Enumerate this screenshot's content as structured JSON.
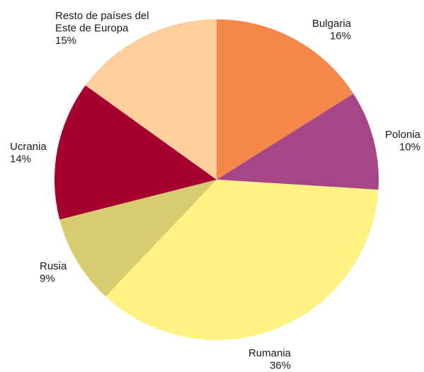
{
  "chart_data": {
    "type": "pie",
    "slices": [
      {
        "name": "Bulgaria",
        "value": 16,
        "pct_label": "16%",
        "color": "#F6874A"
      },
      {
        "name": "Polonia",
        "value": 10,
        "pct_label": "10%",
        "color": "#A64686"
      },
      {
        "name": "Rumania",
        "value": 36,
        "pct_label": "36%",
        "color": "#FFF284"
      },
      {
        "name": "Rusia",
        "value": 9,
        "pct_label": "9%",
        "color": "#D9CC70"
      },
      {
        "name": "Ucrania",
        "value": 14,
        "pct_label": "14%",
        "color": "#A60030"
      },
      {
        "name": "Resto de países del Este de Europa",
        "name_lines": [
          "Resto de países del",
          "Este de Europa"
        ],
        "value": 15,
        "pct_label": "15%",
        "color": "#FFCE9C"
      }
    ],
    "start_angle": "12 o'clock",
    "direction": "clockwise"
  }
}
